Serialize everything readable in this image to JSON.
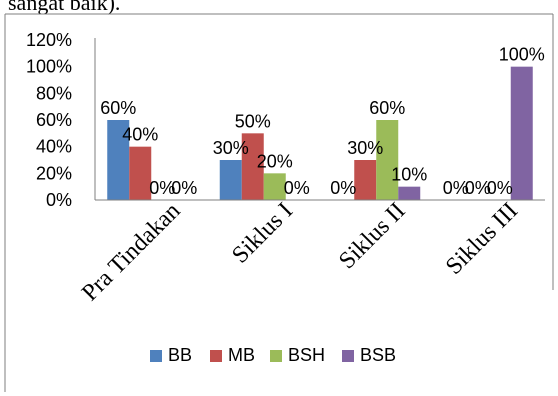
{
  "header_fragment": "sangat baik).",
  "colors": {
    "BB": "#4f81bd",
    "MB": "#c0504d",
    "BSH": "#9bbb59",
    "BSB": "#8064a2",
    "axis": "#7f7f7f",
    "frame": "#7f7f7f"
  },
  "chart_data": {
    "type": "bar",
    "categories": [
      "Pra Tindakan",
      "Siklus I",
      "Siklus II",
      "Siklus III"
    ],
    "series": [
      {
        "name": "BB",
        "values": [
          60,
          30,
          0,
          0
        ],
        "labels": [
          "60%",
          "30%",
          "0%",
          "0%"
        ]
      },
      {
        "name": "MB",
        "values": [
          40,
          50,
          30,
          0
        ],
        "labels": [
          "40%",
          "50%",
          "30%",
          "0%"
        ]
      },
      {
        "name": "BSH",
        "values": [
          0,
          20,
          60,
          0
        ],
        "labels": [
          "0%",
          "20%",
          "60%",
          "0%"
        ]
      },
      {
        "name": "BSB",
        "values": [
          0,
          0,
          10,
          100
        ],
        "labels": [
          "0%",
          "0%",
          "10%",
          "100%"
        ]
      }
    ],
    "yticks": [
      "0%",
      "20%",
      "40%",
      "60%",
      "80%",
      "100%",
      "120%"
    ],
    "ylim": [
      0,
      120
    ],
    "legend_position": "bottom",
    "grid": false
  }
}
